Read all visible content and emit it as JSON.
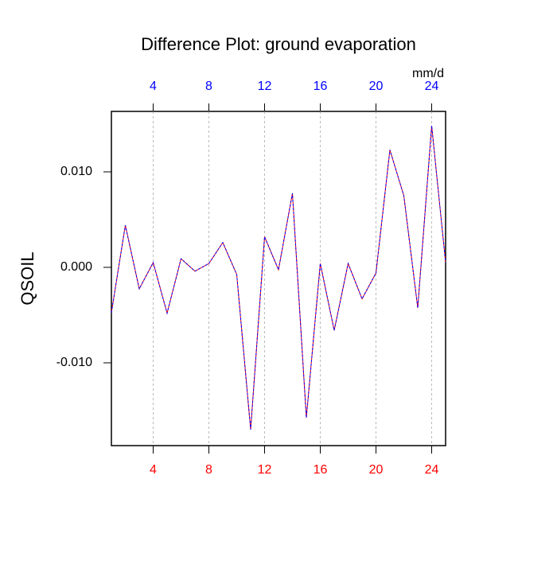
{
  "chart_data": {
    "type": "line",
    "title": "Difference Plot: ground evaporation",
    "y_label": "QSOIL",
    "x2_unit": "mm/d",
    "x": [
      1,
      2,
      3,
      4,
      5,
      6,
      7,
      8,
      9,
      10,
      11,
      12,
      13,
      14,
      15,
      16,
      17,
      18,
      19,
      20,
      21,
      22,
      23,
      24,
      25
    ],
    "series": [
      {
        "color": "#ff0000",
        "values": [
          -0.00475,
          0.0044,
          -0.00225,
          0.0005,
          -0.0048,
          0.0009,
          -0.0004,
          0.0004,
          0.0026,
          -0.00075,
          -0.017,
          0.0032,
          -0.00025,
          0.00775,
          -0.01575,
          0.0004,
          -0.0066,
          0.0004,
          -0.0033,
          -0.0006,
          0.0123,
          0.0075,
          -0.00425,
          0.01483,
          0.0005
        ]
      },
      {
        "color": "#0000ff",
        "dashed": true,
        "values": [
          -0.00475,
          0.0044,
          -0.00225,
          0.0005,
          -0.0048,
          0.0009,
          -0.0004,
          0.0004,
          0.0026,
          -0.00075,
          -0.017,
          0.0032,
          -0.00025,
          0.00775,
          -0.01575,
          0.0004,
          -0.0066,
          0.0004,
          -0.0033,
          -0.0006,
          0.0123,
          0.0075,
          -0.00425,
          0.01483,
          0.0005
        ]
      }
    ],
    "xlim": [
      1,
      25
    ],
    "xticks": [
      4,
      8,
      12,
      16,
      20,
      24
    ],
    "xtick_color": "#ff0000",
    "x2lim": [
      1,
      25
    ],
    "x2ticks": [
      4,
      8,
      12,
      16,
      20,
      24
    ],
    "x2tick_color": "#0000ff",
    "ylim": [
      -0.01867,
      0.01633
    ],
    "yticks": [
      {
        "value": -0.01,
        "label": "-0.010"
      },
      {
        "value": 0,
        "label": "0.000"
      },
      {
        "value": 0.01,
        "label": "0.010"
      }
    ],
    "grid": "x"
  }
}
